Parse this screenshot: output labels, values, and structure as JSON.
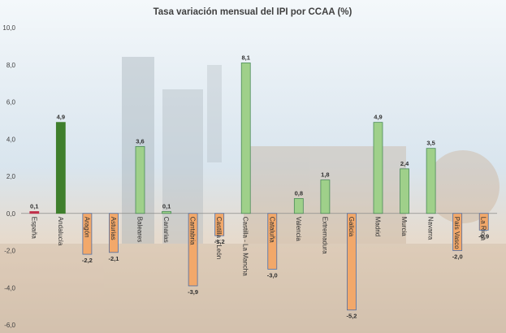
{
  "chart_data": {
    "type": "bar",
    "title": "Tasa variación mensual del IPI por CCAA (%)",
    "xlabel": "",
    "ylabel": "",
    "ylim": [
      -6,
      10
    ],
    "y_ticks": [
      "10,0",
      "8,0",
      "6,0",
      "4,0",
      "2,0",
      "0,0",
      "-2,0",
      "-4,0",
      "-6,0"
    ],
    "y_tick_values": [
      10,
      8,
      6,
      4,
      2,
      0,
      -2,
      -4,
      -6
    ],
    "grid": false,
    "legend": "none",
    "categories": [
      "España",
      "Andalucía",
      "Aragón",
      "Asturias",
      "Baleares",
      "Canarias",
      "Cantabria",
      "Castilla y León",
      "Castilla - La Mancha",
      "Cataluña",
      "Valencia",
      "Extremadura",
      "Galicia",
      "Madrid",
      "Murcia",
      "Navarra",
      "País Vasco",
      "La Rioja"
    ],
    "values": [
      0.1,
      4.9,
      -2.2,
      -2.1,
      3.6,
      0.1,
      -3.9,
      -1.2,
      8.1,
      -3.0,
      0.8,
      1.8,
      -5.2,
      4.9,
      2.4,
      3.5,
      -2.0,
      -0.9
    ],
    "value_labels": [
      "0,1",
      "4,9",
      "-2,2",
      "-2,1",
      "3,6",
      "0,1",
      "-3,9",
      "-1,2",
      "8,1",
      "-3,0",
      "0,8",
      "1,8",
      "-5,2",
      "4,9",
      "2,4",
      "3,5",
      "-2,0",
      "-0,9"
    ],
    "colors": {
      "spain": "#c0304a",
      "highlight": "#3f7f2c",
      "positive": "#9fd08a",
      "positive_edge": "#4a8b58",
      "negative": "#f2a86a",
      "negative_edge": "#4f6fa6",
      "negative_label": "#c55a11"
    }
  }
}
